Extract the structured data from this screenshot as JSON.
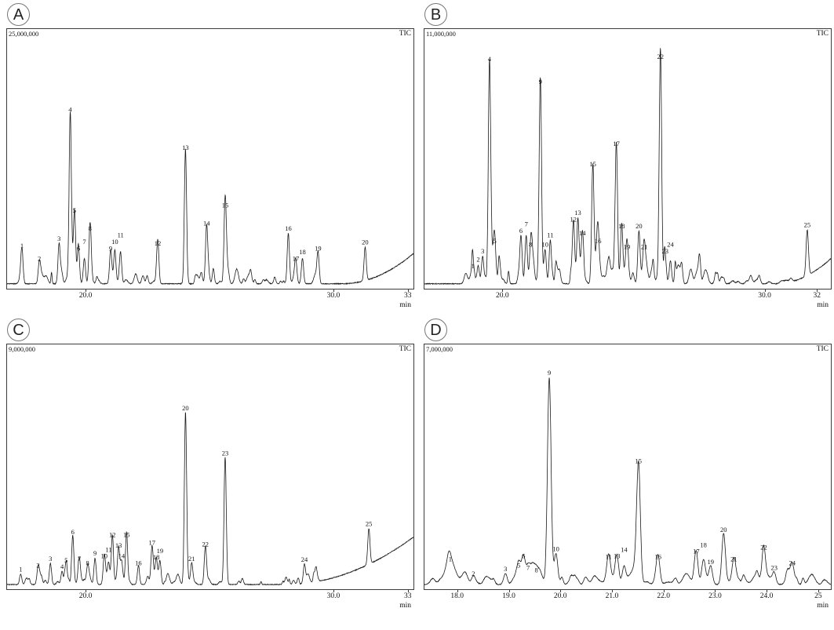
{
  "colors": {
    "trace": "#1a1a1a",
    "text": "#111111",
    "frame": "#3c3c3c",
    "background": "#ffffff"
  },
  "chart_data": [
    {
      "type": "line",
      "subtype": "chromatogram-TIC",
      "panel": "A",
      "title": "TIC",
      "y_full_scale_label": "25,000,000",
      "y_full_scale": 25000000,
      "xlabel": "min",
      "x_range": [
        16.8,
        33.2
      ],
      "x_ticks": [
        {
          "value": 20.0,
          "label": "20.0"
        },
        {
          "value": 30.0,
          "label": "30.0"
        },
        {
          "value": 33.0,
          "label": "33"
        }
      ],
      "peak_sigma": 0.045,
      "seed": 7,
      "baseline_rise": {
        "from": 30.3,
        "height": 0.12
      },
      "noise_zones": [
        {
          "from": 17.2,
          "to": 30.2,
          "amp": 0.05,
          "count": 55
        }
      ],
      "peaks": [
        {
          "id": "1",
          "rt": 17.4,
          "intensity": 3300000
        },
        {
          "id": "2",
          "rt": 18.1,
          "intensity": 2000000
        },
        {
          "id": "3",
          "rt": 18.9,
          "intensity": 4000000
        },
        {
          "id": "4",
          "rt": 19.35,
          "intensity": 16800000
        },
        {
          "id": "5",
          "rt": 19.52,
          "intensity": 6800000
        },
        {
          "id": "6",
          "rt": 19.68,
          "intensity": 3000000
        },
        {
          "id": "7",
          "rt": 19.92,
          "intensity": 2500000
        },
        {
          "id": "8",
          "rt": 20.15,
          "intensity": 5000000
        },
        {
          "id": "9",
          "rt": 20.98,
          "intensity": 3000000
        },
        {
          "id": "10",
          "rt": 21.15,
          "intensity": 3300000
        },
        {
          "id": "11",
          "rt": 21.38,
          "intensity": 3000000
        },
        {
          "id": "12",
          "rt": 22.88,
          "intensity": 3500000
        },
        {
          "id": "13",
          "rt": 24.0,
          "intensity": 13000000
        },
        {
          "id": "14",
          "rt": 24.85,
          "intensity": 5500000
        },
        {
          "id": "15",
          "rt": 25.6,
          "intensity": 7300000
        },
        {
          "id": "16",
          "rt": 28.15,
          "intensity": 5000000
        },
        {
          "id": "17",
          "rt": 28.45,
          "intensity": 2000000
        },
        {
          "id": "18",
          "rt": 28.72,
          "intensity": 2500000
        },
        {
          "id": "19",
          "rt": 29.35,
          "intensity": 3000000
        },
        {
          "id": "20",
          "rt": 31.25,
          "intensity": 3300000
        }
      ]
    },
    {
      "type": "line",
      "subtype": "chromatogram-TIC",
      "panel": "B",
      "title": "TIC",
      "y_full_scale_label": "11,000,000",
      "y_full_scale": 11000000,
      "xlabel": "min",
      "x_range": [
        17.0,
        32.5
      ],
      "x_ticks": [
        {
          "value": 20.0,
          "label": "20.0"
        },
        {
          "value": 30.0,
          "label": "30.0"
        },
        {
          "value": 32.0,
          "label": "32"
        }
      ],
      "peak_sigma": 0.045,
      "seed": 13,
      "baseline_rise": {
        "from": 30.4,
        "height": 0.1
      },
      "noise_zones": [
        {
          "from": 18.5,
          "to": 28.5,
          "amp": 0.08,
          "count": 90
        },
        {
          "from": 28.5,
          "to": 31.2,
          "amp": 0.03,
          "count": 15
        }
      ],
      "peaks": [
        {
          "id": "1",
          "rt": 18.85,
          "intensity": 550000
        },
        {
          "id": "2",
          "rt": 19.05,
          "intensity": 770000
        },
        {
          "id": "3",
          "rt": 19.22,
          "intensity": 1200000
        },
        {
          "id": "4",
          "rt": 19.48,
          "intensity": 9600000
        },
        {
          "id": "5",
          "rt": 19.68,
          "intensity": 1650000
        },
        {
          "id": "6",
          "rt": 20.68,
          "intensity": 2100000
        },
        {
          "id": "7",
          "rt": 20.88,
          "intensity": 2100000
        },
        {
          "id": "8",
          "rt": 21.05,
          "intensity": 1500000
        },
        {
          "id": "9",
          "rt": 21.42,
          "intensity": 8600000
        },
        {
          "id": "10",
          "rt": 21.6,
          "intensity": 1500000
        },
        {
          "id": "11",
          "rt": 21.8,
          "intensity": 1900000
        },
        {
          "id": "12",
          "rt": 22.68,
          "intensity": 2600000
        },
        {
          "id": "13",
          "rt": 22.85,
          "intensity": 2300000
        },
        {
          "id": "14",
          "rt": 23.02,
          "intensity": 2000000
        },
        {
          "id": "15",
          "rt": 23.42,
          "intensity": 5000000
        },
        {
          "id": "16",
          "rt": 23.62,
          "intensity": 1650000
        },
        {
          "id": "17",
          "rt": 24.32,
          "intensity": 5900000
        },
        {
          "id": "18",
          "rt": 24.52,
          "intensity": 2300000
        },
        {
          "id": "19",
          "rt": 24.72,
          "intensity": 1400000
        },
        {
          "id": "20",
          "rt": 25.18,
          "intensity": 2300000
        },
        {
          "id": "21",
          "rt": 25.38,
          "intensity": 1400000
        },
        {
          "id": "22",
          "rt": 26.0,
          "intensity": 9700000
        },
        {
          "id": "23",
          "rt": 26.18,
          "intensity": 1200000
        },
        {
          "id": "24",
          "rt": 26.38,
          "intensity": 1000000
        },
        {
          "id": "25",
          "rt": 31.6,
          "intensity": 2000000
        }
      ]
    },
    {
      "type": "line",
      "subtype": "chromatogram-TIC",
      "panel": "C",
      "title": "TIC",
      "y_full_scale_label": "9,000,000",
      "y_full_scale": 9000000,
      "xlabel": "min",
      "x_range": [
        16.8,
        33.2
      ],
      "x_ticks": [
        {
          "value": 20.0,
          "label": "20.0"
        },
        {
          "value": 30.0,
          "label": "30.0"
        },
        {
          "value": 33.0,
          "label": "33"
        }
      ],
      "peak_sigma": 0.045,
      "seed": 21,
      "baseline_rise": {
        "from": 28.0,
        "height": 0.2
      },
      "noise_zones": [
        {
          "from": 17.2,
          "to": 26.5,
          "amp": 0.04,
          "count": 50
        },
        {
          "from": 27.0,
          "to": 29.5,
          "amp": 0.06,
          "count": 12
        }
      ],
      "peaks": [
        {
          "id": "1",
          "rt": 17.35,
          "intensity": 400000
        },
        {
          "id": "2",
          "rt": 18.05,
          "intensity": 540000
        },
        {
          "id": "3",
          "rt": 18.55,
          "intensity": 800000
        },
        {
          "id": "4",
          "rt": 19.02,
          "intensity": 500000
        },
        {
          "id": "5",
          "rt": 19.18,
          "intensity": 600000
        },
        {
          "id": "6",
          "rt": 19.45,
          "intensity": 1800000
        },
        {
          "id": "7",
          "rt": 19.72,
          "intensity": 800000
        },
        {
          "id": "8",
          "rt": 20.05,
          "intensity": 630000
        },
        {
          "id": "9",
          "rt": 20.35,
          "intensity": 1000000
        },
        {
          "id": "10",
          "rt": 20.72,
          "intensity": 900000
        },
        {
          "id": "11",
          "rt": 20.9,
          "intensity": 770000
        },
        {
          "id": "12",
          "rt": 21.05,
          "intensity": 1700000
        },
        {
          "id": "13",
          "rt": 21.3,
          "intensity": 1300000
        },
        {
          "id": "14",
          "rt": 21.42,
          "intensity": 900000
        },
        {
          "id": "15",
          "rt": 21.62,
          "intensity": 1700000
        },
        {
          "id": "16",
          "rt": 22.1,
          "intensity": 630000
        },
        {
          "id": "17",
          "rt": 22.65,
          "intensity": 1400000
        },
        {
          "id": "18",
          "rt": 22.82,
          "intensity": 850000
        },
        {
          "id": "19",
          "rt": 22.97,
          "intensity": 850000
        },
        {
          "id": "20",
          "rt": 24.0,
          "intensity": 6500000
        },
        {
          "id": "21",
          "rt": 24.25,
          "intensity": 800000
        },
        {
          "id": "22",
          "rt": 24.8,
          "intensity": 1350000
        },
        {
          "id": "23",
          "rt": 25.6,
          "intensity": 4800000
        },
        {
          "id": "24",
          "rt": 28.8,
          "intensity": 720000
        },
        {
          "id": "25",
          "rt": 31.4,
          "intensity": 1350000
        }
      ]
    },
    {
      "type": "line",
      "subtype": "chromatogram-TIC",
      "panel": "D",
      "title": "TIC",
      "y_full_scale_label": "7,000,000",
      "y_full_scale": 7000000,
      "xlabel": "min",
      "x_range": [
        17.35,
        25.23
      ],
      "x_ticks": [
        {
          "value": 18.0,
          "label": "18.0"
        },
        {
          "value": 19.0,
          "label": "19.0"
        },
        {
          "value": 20.0,
          "label": "20.0"
        },
        {
          "value": 21.0,
          "label": "21.0"
        },
        {
          "value": 22.0,
          "label": "22.0"
        },
        {
          "value": 23.0,
          "label": "23.0"
        },
        {
          "value": 24.0,
          "label": "24.0"
        },
        {
          "value": 25.0,
          "label": "25"
        }
      ],
      "peak_sigma": 0.035,
      "seed": 5,
      "baseline_rise": null,
      "noise_zones": [
        {
          "from": 17.5,
          "to": 25.2,
          "amp": 0.05,
          "count": 80
        }
      ],
      "peaks": [
        {
          "id": "1",
          "rt": 17.85,
          "intensity": 600000,
          "sigma": 0.07
        },
        {
          "id": "2",
          "rt": 18.3,
          "intensity": 180000
        },
        {
          "id": "3",
          "rt": 18.92,
          "intensity": 320000
        },
        {
          "id": "5",
          "rt": 19.18,
          "intensity": 420000
        },
        {
          "id": "6",
          "rt": 19.27,
          "intensity": 700000
        },
        {
          "id": "7",
          "rt": 19.36,
          "intensity": 350000
        },
        {
          "id": "8",
          "rt": 19.52,
          "intensity": 280000
        },
        {
          "id": "9",
          "rt": 19.77,
          "intensity": 6100000
        },
        {
          "id": "10",
          "rt": 19.9,
          "intensity": 910000
        },
        {
          "id": "11",
          "rt": 20.92,
          "intensity": 670000
        },
        {
          "id": "13",
          "rt": 21.08,
          "intensity": 700000
        },
        {
          "id": "14",
          "rt": 21.22,
          "intensity": 530000
        },
        {
          "id": "15",
          "rt": 21.5,
          "intensity": 3500000
        },
        {
          "id": "16",
          "rt": 21.88,
          "intensity": 670000
        },
        {
          "id": "17",
          "rt": 22.62,
          "intensity": 840000
        },
        {
          "id": "18",
          "rt": 22.76,
          "intensity": 670000
        },
        {
          "id": "19",
          "rt": 22.9,
          "intensity": 530000
        },
        {
          "id": "20",
          "rt": 23.15,
          "intensity": 1470000
        },
        {
          "id": "21",
          "rt": 23.35,
          "intensity": 600000
        },
        {
          "id": "22",
          "rt": 23.93,
          "intensity": 950000
        },
        {
          "id": "23",
          "rt": 24.13,
          "intensity": 350000
        },
        {
          "id": "24",
          "rt": 24.48,
          "intensity": 490000
        }
      ]
    }
  ]
}
